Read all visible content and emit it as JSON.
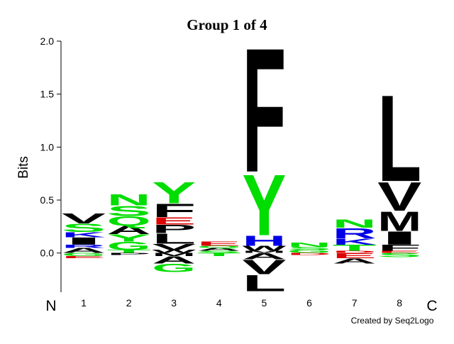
{
  "chart_data": {
    "type": "logo",
    "title": "Group 1 of 4",
    "y_label": "Bits",
    "categories": [
      "1",
      "2",
      "3",
      "4",
      "5",
      "6",
      "7",
      "8"
    ],
    "start_label": "N",
    "end_label": "C",
    "footer": "Created by Seq2Logo",
    "ylim": [
      -0.37,
      2.0
    ],
    "yticks": [
      {
        "value": 0,
        "label": "0.0"
      },
      {
        "value": 0.5,
        "label": "0.5"
      },
      {
        "value": 1,
        "label": "1.0"
      },
      {
        "value": 1.5,
        "label": "1.5"
      },
      {
        "value": 2,
        "label": "2.0"
      }
    ],
    "colors": {
      "A": "#000000",
      "V": "#000000",
      "L": "#000000",
      "I": "#000000",
      "M": "#000000",
      "F": "#000000",
      "W": "#000000",
      "P": "#000000",
      "S": "#00dd00",
      "T": "#00dd00",
      "Y": "#00dd00",
      "N": "#00dd00",
      "Q": "#00dd00",
      "G": "#00dd00",
      "C": "#00dd00",
      "K": "#0000e6",
      "R": "#0000e6",
      "H": "#0000e6",
      "D": "#dd0000",
      "E": "#dd0000"
    },
    "positions": [
      {
        "letters": [
          "A",
          "R",
          "I",
          "K",
          "S",
          "V",
          "G",
          "E"
        ],
        "values": [
          0.05,
          0.03,
          0.07,
          0.05,
          0.08,
          0.1,
          -0.03,
          -0.02
        ]
      },
      {
        "letters": [
          "T",
          "G",
          "Y",
          "A",
          "Q",
          "S",
          "N",
          "P"
        ],
        "values": [
          0.03,
          0.08,
          0.07,
          0.08,
          0.09,
          0.1,
          0.11,
          -0.02
        ]
      },
      {
        "letters": [
          "W",
          "V",
          "L",
          "P",
          "E",
          "F",
          "Y",
          "M",
          "A",
          "G"
        ],
        "values": [
          0.03,
          0.06,
          0.1,
          0.08,
          0.07,
          0.13,
          0.21,
          -0.03,
          -0.07,
          -0.08
        ]
      },
      {
        "letters": [
          "S",
          "A",
          "Q",
          "E",
          "T"
        ],
        "values": [
          0.02,
          0.03,
          0.02,
          0.04,
          -0.03
        ]
      },
      {
        "letters": [
          "M",
          "W",
          "H",
          "Y",
          "F",
          "A",
          "V",
          "L"
        ],
        "values": [
          0.02,
          0.05,
          0.1,
          0.6,
          1.22,
          -0.06,
          -0.14,
          -0.16
        ]
      },
      {
        "letters": [
          "G",
          "S",
          "N",
          "D"
        ],
        "values": [
          0.03,
          0.03,
          0.04,
          -0.02
        ]
      },
      {
        "letters": [
          "D",
          "T",
          "K",
          "R",
          "N",
          "E",
          "A"
        ],
        "values": [
          0.02,
          0.06,
          0.06,
          0.1,
          0.08,
          -0.05,
          -0.05
        ]
      },
      {
        "letters": [
          "E",
          "F",
          "I",
          "M",
          "V",
          "L",
          "S"
        ],
        "values": [
          0.02,
          0.06,
          0.13,
          0.19,
          0.28,
          0.85,
          -0.04
        ]
      }
    ]
  }
}
